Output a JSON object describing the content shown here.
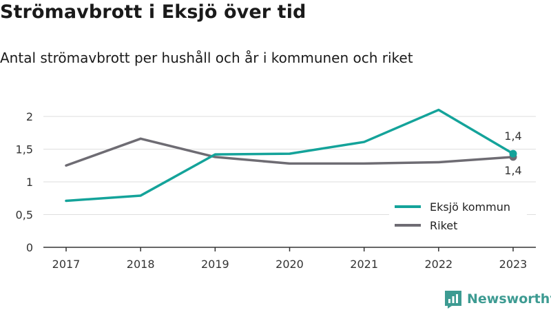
{
  "header": {
    "title": "Strömavbrott i Eksjö över tid",
    "subtitle": "Antal strömavbrott per hushåll och år i kommunen och riket"
  },
  "brand": {
    "name": "Newsworthy",
    "color": "#3d9b92"
  },
  "chart_data": {
    "type": "line",
    "x": [
      "2017",
      "2018",
      "2019",
      "2020",
      "2021",
      "2022",
      "2023"
    ],
    "series": [
      {
        "name": "Eksjö kommun",
        "color": "#14a39a",
        "values": [
          0.71,
          0.79,
          1.42,
          1.43,
          1.61,
          2.1,
          1.43
        ],
        "end_label": "1,4"
      },
      {
        "name": "Riket",
        "color": "#6e6c73",
        "values": [
          1.25,
          1.66,
          1.38,
          1.28,
          1.28,
          1.3,
          1.38
        ],
        "end_label": "1,4"
      }
    ],
    "yticks": [
      0,
      0.5,
      1,
      1.5,
      2
    ],
    "ytick_labels": [
      "0",
      "0,5",
      "1",
      "1,5",
      "2"
    ],
    "ylim": [
      0,
      2.2
    ],
    "grid": true,
    "legend_position": "bottom-right"
  }
}
